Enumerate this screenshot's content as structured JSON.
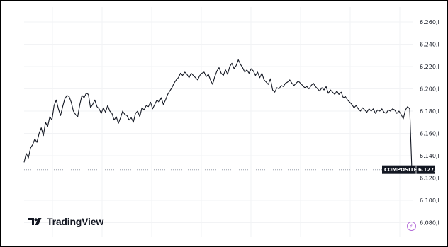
{
  "brand": {
    "name": "TradingView",
    "logo_icon": "tradingview-logo-icon"
  },
  "badge": {
    "glyph": "⚡",
    "icon": "lightning-icon",
    "color": "#b36ad8"
  },
  "chart_data": {
    "type": "line",
    "title": "",
    "xlabel": "",
    "ylabel": "",
    "grid": true,
    "ylim": [
      6070,
      6268
    ],
    "y_ticks": [
      6260,
      6240,
      6220,
      6200,
      6180,
      6160,
      6140,
      6120,
      6100,
      6080
    ],
    "y_tick_labels": [
      "6.260,l",
      "6.240,l",
      "6.220,l",
      "6.200,l",
      "6.180,l",
      "6.160,l",
      "6.140,l",
      "6.120,l",
      "6.100,l",
      "6.080,l"
    ],
    "reference_line": {
      "value": 6127.5,
      "label": "COMPOSITE",
      "value_label": "6.127,"
    },
    "series": [
      {
        "color": "#131722",
        "values": [
          6134,
          6142,
          6138,
          6147,
          6150,
          6155,
          6152,
          6160,
          6165,
          6158,
          6170,
          6166,
          6175,
          6172,
          6185,
          6190,
          6182,
          6176,
          6184,
          6191,
          6194,
          6193,
          6188,
          6180,
          6177,
          6175,
          6186,
          6194,
          6192,
          6196,
          6195,
          6183,
          6186,
          6190,
          6184,
          6182,
          6178,
          6183,
          6179,
          6185,
          6180,
          6178,
          6172,
          6175,
          6169,
          6174,
          6180,
          6177,
          6176,
          6172,
          6174,
          6170,
          6178,
          6180,
          6175,
          6183,
          6181,
          6185,
          6184,
          6188,
          6182,
          6186,
          6190,
          6188,
          6192,
          6186,
          6190,
          6195,
          6198,
          6201,
          6205,
          6208,
          6210,
          6214,
          6212,
          6215,
          6213,
          6210,
          6214,
          6212,
          6210,
          6208,
          6212,
          6214,
          6215,
          6211,
          6213,
          6208,
          6204,
          6211,
          6216,
          6219,
          6214,
          6212,
          6217,
          6213,
          6220,
          6223,
          6218,
          6221,
          6226,
          6222,
          6219,
          6215,
          6217,
          6214,
          6218,
          6216,
          6212,
          6215,
          6210,
          6214,
          6208,
          6206,
          6204,
          6209,
          6199,
          6197,
          6201,
          6200,
          6203,
          6202,
          6205,
          6206,
          6208,
          6205,
          6203,
          6205,
          6207,
          6205,
          6203,
          6201,
          6202,
          6200,
          6203,
          6205,
          6202,
          6200,
          6198,
          6201,
          6199,
          6202,
          6196,
          6199,
          6197,
          6195,
          6198,
          6195,
          6197,
          6192,
          6193,
          6190,
          6188,
          6186,
          6183,
          6185,
          6182,
          6180,
          6183,
          6181,
          6179,
          6182,
          6180,
          6182,
          6178,
          6181,
          6180,
          6182,
          6179,
          6178,
          6181,
          6180,
          6182,
          6181,
          6178,
          6180,
          6177,
          6173,
          6181,
          6184,
          6182,
          6127
        ]
      }
    ]
  }
}
